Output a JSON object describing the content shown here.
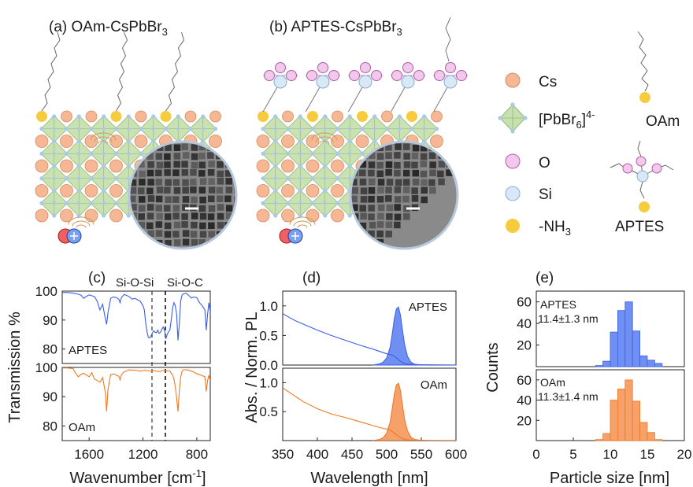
{
  "panel_a": {
    "label": "(a) OAm-CsPbBr",
    "sub": "3"
  },
  "panel_b": {
    "label": "(b) APTES-CsPbBr",
    "sub": "3"
  },
  "legend": {
    "cs": "Cs",
    "pbbr6_main": "[PbBr",
    "pbbr6_sub": "6",
    "pbbr6_close": "]",
    "pbbr6_sup": "4-",
    "o": "O",
    "si": "Si",
    "nh3_main": "-NH",
    "nh3_sub": "3",
    "oam": "OAm",
    "aptes": "APTES"
  },
  "colors": {
    "cs": "#f6b894",
    "cs_stroke": "#d68a62",
    "octa": "#c8e0b0",
    "octa_stroke": "#8ab870",
    "node": "#a8c9ea",
    "o": "#f2c8ec",
    "o_stroke": "#b85aa8",
    "si": "#d8e8f6",
    "si_stroke": "#8aaed0",
    "nh3": "#f6cc3e",
    "aptes_line": "#3a5ee6",
    "oam_line": "#f07820",
    "aptes_fill": "#6f8ff2",
    "oam_fill": "#f6a06a",
    "tem": "#8a8a8a"
  },
  "icons": {
    "electron_hole": "electron-hole-pair-icon",
    "wave": "vibration-wave-icon",
    "scale_bar": "scale-bar-icon"
  },
  "chart_data": [
    {
      "type": "line",
      "panel": "(c)",
      "xlabel": "Wavenumber [cm",
      "xlabel_sup": "-1",
      "xlabel_close": "]",
      "ylabel": "Transmission %",
      "xlim": [
        1800,
        700
      ],
      "xticks": [
        1600,
        1200,
        800
      ],
      "annotations": [
        {
          "text": "Si-O-Si",
          "x": 1130
        },
        {
          "text": "Si-O-C",
          "x": 1040
        }
      ],
      "series": [
        {
          "name": "APTES",
          "ylim": [
            75,
            100
          ],
          "yticks": [
            100,
            90,
            80
          ],
          "x": [
            1800,
            1760,
            1720,
            1680,
            1660,
            1640,
            1620,
            1600,
            1580,
            1560,
            1540,
            1520,
            1500,
            1480,
            1470,
            1460,
            1440,
            1420,
            1400,
            1380,
            1370,
            1360,
            1340,
            1320,
            1300,
            1280,
            1260,
            1240,
            1220,
            1200,
            1190,
            1180,
            1170,
            1160,
            1150,
            1140,
            1130,
            1120,
            1110,
            1100,
            1090,
            1080,
            1070,
            1060,
            1050,
            1040,
            1030,
            1020,
            1010,
            1000,
            990,
            980,
            970,
            960,
            950,
            940,
            930,
            920,
            910,
            900,
            880,
            860,
            840,
            820,
            800,
            780,
            760,
            740,
            730,
            720,
            710,
            700
          ],
          "y": [
            99.5,
            99.5,
            99.3,
            98.9,
            98.6,
            97.5,
            98.2,
            98.7,
            98.4,
            98.1,
            96.5,
            93.5,
            95.5,
            90.6,
            88.5,
            92.5,
            97.5,
            98,
            97.8,
            97.2,
            96,
            97.8,
            98.8,
            98.5,
            98,
            97.2,
            97.5,
            97,
            96.5,
            95,
            93.5,
            89,
            86,
            84,
            83.8,
            84.5,
            85.5,
            86.3,
            85.8,
            85.6,
            86.5,
            85.4,
            85.8,
            86.8,
            87.6,
            86.5,
            83.5,
            85,
            86,
            86.5,
            90,
            94,
            96,
            95,
            92,
            83,
            88.5,
            96.5,
            98.6,
            99,
            99.3,
            98.5,
            97.6,
            98,
            97.7,
            96,
            95,
            93.5,
            86.5,
            92,
            96,
            93
          ]
        },
        {
          "name": "OAm",
          "ylim": [
            75,
            100
          ],
          "yticks": [
            100,
            90,
            80
          ],
          "x": [
            1800,
            1760,
            1720,
            1700,
            1680,
            1660,
            1640,
            1620,
            1600,
            1580,
            1560,
            1540,
            1520,
            1500,
            1480,
            1470,
            1460,
            1440,
            1420,
            1400,
            1380,
            1370,
            1360,
            1340,
            1320,
            1300,
            1280,
            1260,
            1240,
            1220,
            1200,
            1180,
            1160,
            1140,
            1120,
            1100,
            1080,
            1060,
            1040,
            1020,
            1000,
            990,
            980,
            970,
            960,
            950,
            940,
            930,
            920,
            910,
            900,
            880,
            860,
            840,
            820,
            800,
            780,
            760,
            740,
            730,
            720,
            710,
            700
          ],
          "y": [
            99.8,
            99.8,
            99.6,
            98,
            96.8,
            97.6,
            98,
            97.4,
            96.8,
            98.2,
            96,
            95.5,
            95,
            96.5,
            91.5,
            85,
            92.5,
            97.5,
            97.8,
            97.4,
            97,
            95.8,
            97.5,
            98.5,
            98.8,
            99.2,
            99,
            99.1,
            98.9,
            98.7,
            98.9,
            99,
            98.8,
            98.7,
            98.9,
            98.7,
            98.6,
            98.8,
            99,
            98.8,
            98.8,
            98,
            97.5,
            96,
            93.5,
            89.5,
            85,
            92,
            96.5,
            98.6,
            99.2,
            99.2,
            99,
            98.7,
            98.4,
            97.8,
            97.5,
            97.2,
            96.8,
            91.8,
            95.5,
            97.3,
            95.5
          ]
        }
      ]
    },
    {
      "type": "area",
      "panel": "(d)",
      "xlabel": "Wavelength [nm]",
      "ylabel": "Abs. / Norm. PL",
      "xlim": [
        350,
        600
      ],
      "xticks": [
        350,
        400,
        450,
        500,
        550,
        600
      ],
      "series": [
        {
          "name": "APTES",
          "ylim": [
            0,
            1.25
          ],
          "yticks": [
            0.0,
            0.5,
            1.0
          ],
          "abs_x": [
            350,
            360,
            370,
            380,
            400,
            420,
            440,
            460,
            480,
            490,
            495,
            500,
            505,
            510,
            515,
            520,
            525,
            530,
            540,
            560,
            580,
            600
          ],
          "abs_y": [
            0.87,
            0.8,
            0.74,
            0.69,
            0.59,
            0.5,
            0.42,
            0.34,
            0.27,
            0.23,
            0.21,
            0.19,
            0.175,
            0.16,
            0.11,
            0.06,
            0.03,
            0.015,
            0.008,
            0.004,
            0.002,
            0.001
          ],
          "pl_x": [
            480,
            490,
            495,
            500,
            505,
            508,
            511,
            514,
            517,
            520,
            523,
            526,
            530,
            535,
            540,
            550,
            560
          ],
          "pl_y": [
            0,
            0.02,
            0.05,
            0.12,
            0.3,
            0.52,
            0.78,
            0.95,
            0.98,
            0.84,
            0.58,
            0.34,
            0.15,
            0.05,
            0.015,
            0.003,
            0
          ]
        },
        {
          "name": "OAm",
          "ylim": [
            0,
            1.25
          ],
          "yticks": [
            0.5,
            1.0
          ],
          "abs_x": [
            350,
            360,
            370,
            380,
            400,
            420,
            440,
            460,
            480,
            490,
            495,
            500,
            505,
            510,
            515,
            520,
            525,
            530,
            540,
            560,
            580,
            600
          ],
          "abs_y": [
            0.91,
            0.83,
            0.75,
            0.67,
            0.55,
            0.46,
            0.4,
            0.33,
            0.26,
            0.225,
            0.21,
            0.2,
            0.18,
            0.14,
            0.09,
            0.05,
            0.025,
            0.012,
            0.006,
            0.003,
            0.002,
            0.001
          ],
          "pl_x": [
            480,
            490,
            495,
            500,
            505,
            508,
            511,
            514,
            517,
            520,
            523,
            526,
            530,
            535,
            540,
            550,
            560
          ],
          "pl_y": [
            0,
            0.02,
            0.05,
            0.13,
            0.32,
            0.55,
            0.8,
            0.96,
            0.99,
            0.86,
            0.6,
            0.36,
            0.17,
            0.06,
            0.02,
            0.004,
            0
          ]
        }
      ]
    },
    {
      "type": "bar",
      "panel": "(e)",
      "xlabel": "Particle size [nm]",
      "ylabel": "Counts",
      "xlim": [
        0,
        20
      ],
      "xticks": [
        0,
        5,
        10,
        15,
        20
      ],
      "bin_width": 1,
      "series": [
        {
          "name": "APTES",
          "stat": "11.4±1.3 nm",
          "ylim": [
            0,
            70
          ],
          "yticks": [
            20,
            40,
            60
          ],
          "bins": [
            8,
            9,
            10,
            11,
            12,
            13,
            14,
            15,
            16
          ],
          "values": [
            1,
            5,
            32,
            52,
            60,
            33,
            10,
            6,
            3
          ]
        },
        {
          "name": "OAm",
          "stat": "11.3±1.4 nm",
          "ylim": [
            0,
            70
          ],
          "yticks": [
            20,
            40,
            60
          ],
          "bins": [
            8,
            9,
            10,
            11,
            12,
            13,
            14,
            15,
            16
          ],
          "values": [
            1,
            7,
            40,
            51,
            60,
            39,
            18,
            8,
            1
          ]
        }
      ]
    }
  ]
}
